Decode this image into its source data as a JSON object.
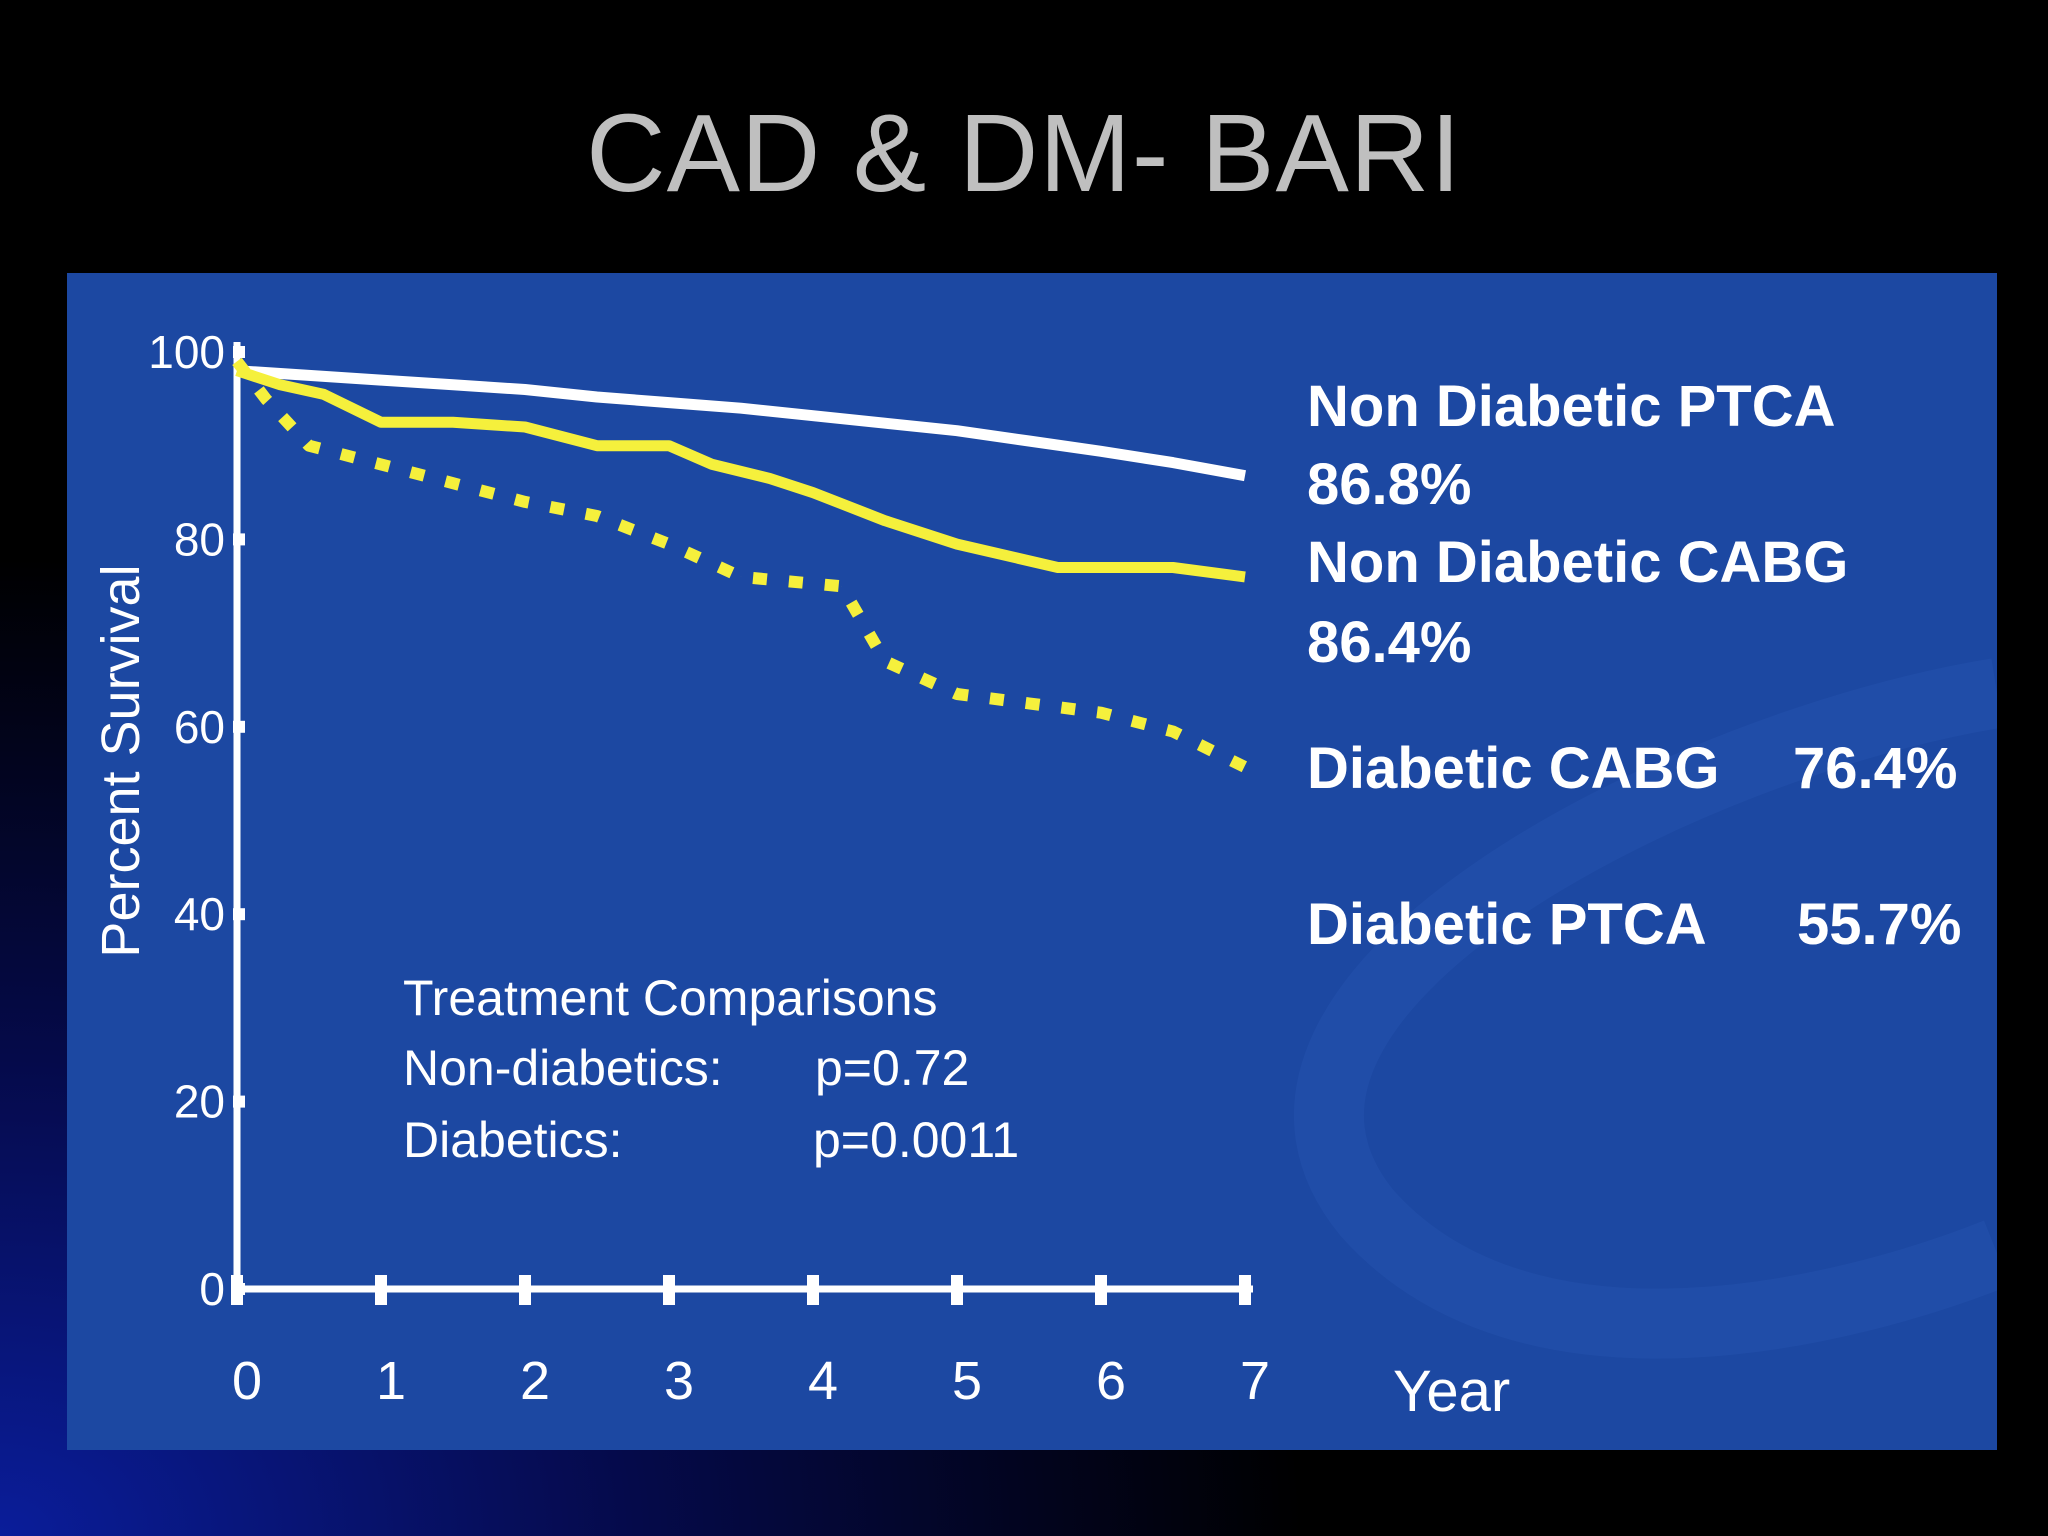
{
  "slide": {
    "title": "CAD & DM- BARI"
  },
  "chart_data": {
    "type": "line",
    "xlabel": "Year",
    "ylabel": "Percent Survival",
    "xlim": [
      0,
      7
    ],
    "ylim": [
      0,
      100
    ],
    "x_ticks": [
      "0",
      "1",
      "2",
      "3",
      "4",
      "5",
      "6",
      "7"
    ],
    "y_ticks": [
      "0",
      "20",
      "40",
      "60",
      "80",
      "100"
    ],
    "series": [
      {
        "name": "Non Diabetic PTCA",
        "color": "#ffffff",
        "style": "solid",
        "x": [
          0,
          0.5,
          1,
          1.5,
          2,
          2.5,
          3,
          3.5,
          4,
          4.5,
          5,
          5.5,
          6,
          6.5,
          7
        ],
        "y": [
          98,
          97.5,
          97,
          96.5,
          96,
          95.2,
          94.6,
          94,
          93.2,
          92.4,
          91.6,
          90.5,
          89.4,
          88.2,
          86.8
        ]
      },
      {
        "name": "Non Diabetic CABG",
        "color": "#f5f03c",
        "style": "solid",
        "x": [
          0,
          0.3,
          0.6,
          1,
          1.5,
          2,
          2.5,
          3,
          3.3,
          3.7,
          4,
          4.5,
          5,
          5.7,
          6.5,
          7
        ],
        "y": [
          98,
          96.5,
          95.5,
          92.5,
          92.5,
          92,
          90,
          90,
          88,
          86.5,
          85,
          82,
          79.5,
          77,
          77,
          76
        ]
      },
      {
        "name": "Diabetic PTCA",
        "color": "#f5f03c",
        "style": "dashed",
        "x": [
          0,
          0.2,
          0.5,
          1,
          1.5,
          2,
          2.5,
          3,
          3.5,
          4.2,
          4.5,
          5,
          5.5,
          6,
          6.5,
          7
        ],
        "y": [
          99,
          95,
          90,
          88,
          86,
          84,
          82.5,
          79.5,
          76,
          75,
          67,
          63.5,
          62.5,
          61.5,
          59.5,
          55.7
        ]
      }
    ],
    "labels": [
      {
        "text": "Non Diabetic PTCA"
      },
      {
        "text": "86.8%"
      },
      {
        "text": "Non Diabetic CABG"
      },
      {
        "text": "86.4%"
      },
      {
        "text": "Diabetic CABG"
      },
      {
        "text": "76.4%"
      },
      {
        "text": "Diabetic PTCA"
      },
      {
        "text": "55.7%"
      }
    ],
    "annotations": {
      "heading": "Treatment Comparisons",
      "rows": [
        {
          "group": "Non-diabetics:",
          "p": "p=0.72"
        },
        {
          "group": "Diabetics:",
          "p": "p=0.0011"
        }
      ]
    }
  }
}
